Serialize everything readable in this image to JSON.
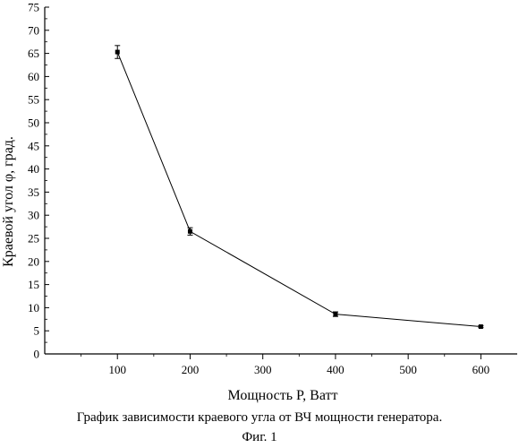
{
  "chart_data": {
    "type": "line",
    "xlabel": "Мощность P, Ватт",
    "ylabel": "Краевой угол φ, град.",
    "xlim": [
      0,
      650
    ],
    "ylim": [
      0,
      75
    ],
    "x_ticks": [
      100,
      200,
      300,
      400,
      500,
      600
    ],
    "y_ticks": [
      0,
      5,
      10,
      15,
      20,
      25,
      30,
      35,
      40,
      45,
      50,
      55,
      60,
      65,
      70,
      75
    ],
    "grid": false,
    "series": [
      {
        "x": [
          100,
          200,
          400,
          600
        ],
        "y": [
          65.3,
          26.5,
          8.6,
          5.9
        ],
        "error": [
          1.4,
          0.8,
          0.5,
          0.2
        ]
      }
    ]
  },
  "caption": "График зависимости краевого угла от ВЧ мощности генератора.",
  "figure_label": "Фиг. 1"
}
